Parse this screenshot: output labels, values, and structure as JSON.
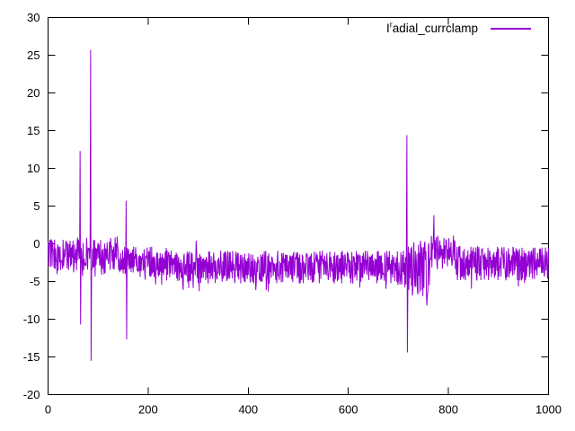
{
  "chart_data": {
    "type": "line",
    "title": "",
    "xlabel": "",
    "ylabel": "",
    "xlim": [
      0,
      1000
    ],
    "ylim": [
      -20,
      30
    ],
    "xticks": [
      0,
      200,
      400,
      600,
      800,
      1000
    ],
    "yticks": [
      -20,
      -15,
      -10,
      -5,
      0,
      5,
      10,
      15,
      20,
      25,
      30
    ],
    "grid": false,
    "legend_position": "top-right-inside",
    "background_color": "#ffffff",
    "axis_color": "#000000",
    "line_color": "#9400d3",
    "legend": {
      "label_prefix": "I",
      "label_superscript": "r",
      "label_rest": "adial_currclamp"
    },
    "n_samples": 1001,
    "noise_seed": 20,
    "noise_segments": [
      {
        "from_x": 0,
        "to_x": 138,
        "min": -3.6,
        "max": 1.0
      },
      {
        "from_x": 139,
        "to_x": 250,
        "min": -4.5,
        "max": -0.3
      },
      {
        "from_x": 251,
        "to_x": 699,
        "min": -5.3,
        "max": -0.9
      },
      {
        "from_x": 700,
        "to_x": 716,
        "min": -5.8,
        "max": -0.8
      },
      {
        "from_x": 717,
        "to_x": 764,
        "min": -7.2,
        "max": 0.4
      },
      {
        "from_x": 765,
        "to_x": 813,
        "min": -3.4,
        "max": 1.1
      },
      {
        "from_x": 814,
        "to_x": 1000,
        "min": -4.9,
        "max": -0.3
      }
    ],
    "spikes": [
      {
        "x": 64,
        "y": 12.3
      },
      {
        "x": 65,
        "y": -10.7
      },
      {
        "x": 85,
        "y": 25.7
      },
      {
        "x": 86,
        "y": -15.5
      },
      {
        "x": 156,
        "y": 5.7
      },
      {
        "x": 157,
        "y": -12.7
      },
      {
        "x": 296,
        "y": 0.4
      },
      {
        "x": 717,
        "y": 14.4
      },
      {
        "x": 718,
        "y": -14.4
      },
      {
        "x": 771,
        "y": 3.8
      }
    ]
  }
}
